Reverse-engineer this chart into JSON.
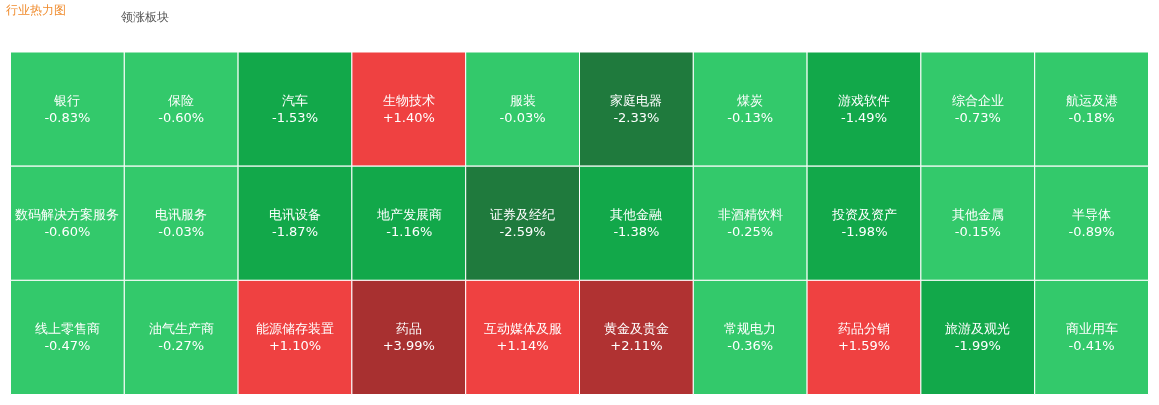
{
  "chart_data": {
    "type": "other",
    "title": "行业热力图",
    "annotations": [
      "领涨板块"
    ],
    "categories": [
      "银行",
      "数码解决方案服务",
      "线上零售商",
      "保险",
      "电讯服务",
      "油气生产商",
      "汽车",
      "电讯设备",
      "能源储存装置",
      "生物技术",
      "地产发展商",
      "药品",
      "服装",
      "证券及经纪",
      "互动媒体及服",
      "家庭电器",
      "其他金融",
      "黄金及贵金",
      "煤炭",
      "非酒精饮料",
      "常规电力",
      "游戏软件",
      "综合企业",
      "航运及港",
      "投资及资产",
      "药品分销",
      "其他金属",
      "半导体",
      "旅游及观光",
      "商业用车"
    ],
    "values": [
      -0.83,
      -0.6,
      -0.47,
      -0.6,
      -0.03,
      -0.27,
      -1.53,
      -1.87,
      1.1,
      1.4,
      -1.16,
      3.99,
      -0.03,
      -2.59,
      1.14,
      -2.33,
      -1.38,
      2.11,
      -0.13,
      -0.25,
      -0.36,
      -1.49,
      -0.73,
      -0.18,
      -1.98,
      1.59,
      -0.15,
      -0.89,
      -1.99,
      -0.41
    ],
    "value_labels": [
      "-0.83%",
      "-0.60%",
      "-0.47%",
      "-0.60%",
      "-0.03%",
      "-0.27%",
      "-1.53%",
      "-1.87%",
      "+1.10%",
      "+1.40%",
      "-1.16%",
      "+3.99%",
      "-0.03%",
      "-2.59%",
      "+1.14%",
      "-2.33%",
      "-1.38%",
      "+2.11%",
      "-0.13%",
      "-0.25%",
      "-0.36%",
      "-1.49%",
      "-0.73%",
      "-0.18%",
      "-1.98%",
      "+1.59%",
      "-0.15%",
      "-0.89%",
      "-1.99%",
      "-0.41%"
    ],
    "colors": [
      "#33c96b",
      "#33c96b",
      "#33c96b",
      "#33c96b",
      "#33c96b",
      "#33c96b",
      "#12a84a",
      "#12a84a",
      "#ef4141",
      "#ef4141",
      "#12a84a",
      "#a83030",
      "#33c96b",
      "#1f7a3d",
      "#ef4141",
      "#1f7a3d",
      "#12a84a",
      "#b03232",
      "#33c96b",
      "#33c96b",
      "#33c96b",
      "#12a84a",
      "#33c96b",
      "#33c96b",
      "#12a84a",
      "#ef4141",
      "#33c96b",
      "#33c96b",
      "#12a84a",
      "#33c96b"
    ]
  }
}
